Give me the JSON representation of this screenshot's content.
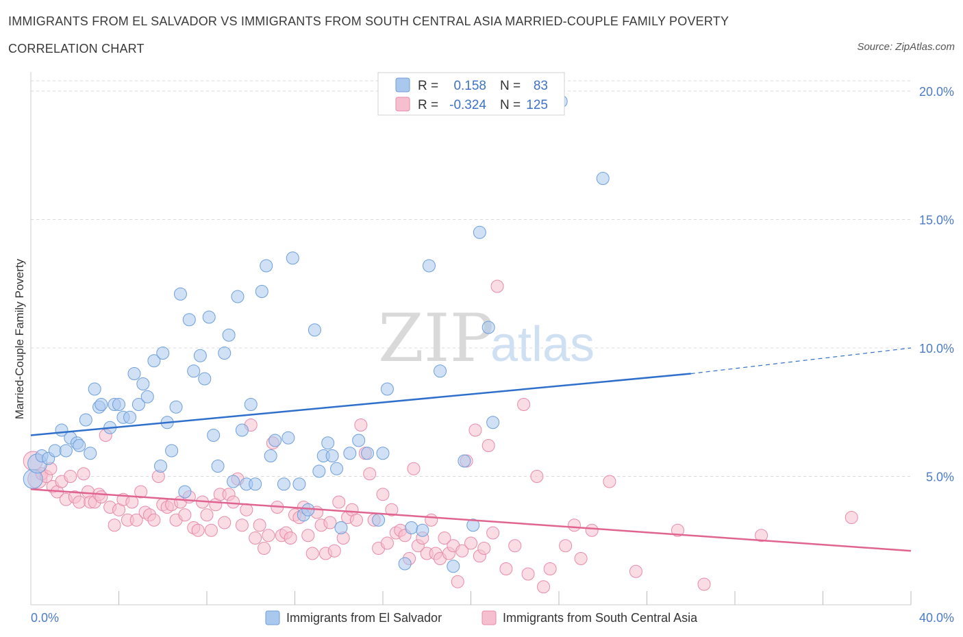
{
  "title_line1": "IMMIGRANTS FROM EL SALVADOR VS IMMIGRANTS FROM SOUTH CENTRAL ASIA MARRIED-COUPLE FAMILY POVERTY",
  "title_line2": "CORRELATION CHART",
  "source": "Source: ZipAtlas.com",
  "watermark": {
    "zip": "ZIP",
    "atlas": "atlas"
  },
  "legend": {
    "r_label": "R =",
    "n_label": "N =",
    "series1": {
      "r": "0.158",
      "n": "83"
    },
    "series2": {
      "r": "-0.324",
      "n": "125"
    }
  },
  "bottom_legend": {
    "series1": "Immigrants from El Salvador",
    "series2": "Immigrants from South Central Asia"
  },
  "colors": {
    "blue_fill": "#aac8ee",
    "blue_stroke": "#6d9edb",
    "blue_line": "#2f6fcc",
    "pink_fill": "#f6bfd0",
    "pink_stroke": "#e88aa9",
    "pink_line": "#e0648f",
    "tick_text": "#4a7bc8",
    "grid": "#d8d8d8"
  },
  "chart_data": {
    "type": "scatter",
    "title": "IMMIGRANTS FROM EL SALVADOR VS IMMIGRANTS FROM SOUTH CENTRAL ASIA MARRIED-COUPLE FAMILY POVERTY CORRELATION CHART",
    "xlabel": "",
    "ylabel": "Married-Couple Family Poverty",
    "xlim": [
      0,
      40
    ],
    "ylim": [
      0,
      20
    ],
    "x_tick_labels": [
      "0.0%",
      "40.0%"
    ],
    "y_ticks": [
      5,
      10,
      15,
      20
    ],
    "y_tick_labels": [
      "5.0%",
      "10.0%",
      "15.0%",
      "20.0%"
    ],
    "grid": true,
    "legend_position": "top-center",
    "series": [
      {
        "name": "Immigrants from El Salvador",
        "color": "blue",
        "r": 0.158,
        "n": 83,
        "trend": {
          "x0": 0,
          "y0": 6.6,
          "x1": 30,
          "y1": 9.0,
          "dashed_to_x": 40,
          "dashed_to_y": 10.0
        },
        "points": [
          [
            0.1,
            4.9
          ],
          [
            0.3,
            5.5
          ],
          [
            0.5,
            5.8
          ],
          [
            0.8,
            5.7
          ],
          [
            1.1,
            6.0
          ],
          [
            1.4,
            6.8
          ],
          [
            1.6,
            6.0
          ],
          [
            1.8,
            6.5
          ],
          [
            2.1,
            6.3
          ],
          [
            2.2,
            6.2
          ],
          [
            2.5,
            7.2
          ],
          [
            2.7,
            5.9
          ],
          [
            2.9,
            8.4
          ],
          [
            3.1,
            7.7
          ],
          [
            3.2,
            7.8
          ],
          [
            3.6,
            6.9
          ],
          [
            3.8,
            7.8
          ],
          [
            4.0,
            7.8
          ],
          [
            4.2,
            7.3
          ],
          [
            4.5,
            7.3
          ],
          [
            4.7,
            9.0
          ],
          [
            4.9,
            7.8
          ],
          [
            5.1,
            8.6
          ],
          [
            5.3,
            8.1
          ],
          [
            5.6,
            9.5
          ],
          [
            5.9,
            5.4
          ],
          [
            6.0,
            9.8
          ],
          [
            6.2,
            7.1
          ],
          [
            6.4,
            6.0
          ],
          [
            6.6,
            7.7
          ],
          [
            6.8,
            12.1
          ],
          [
            7.0,
            4.4
          ],
          [
            7.2,
            11.1
          ],
          [
            7.4,
            9.1
          ],
          [
            7.7,
            9.7
          ],
          [
            7.9,
            8.8
          ],
          [
            8.1,
            11.2
          ],
          [
            8.3,
            6.6
          ],
          [
            8.5,
            5.4
          ],
          [
            8.8,
            9.8
          ],
          [
            9.0,
            10.5
          ],
          [
            9.2,
            4.8
          ],
          [
            9.4,
            12.0
          ],
          [
            9.6,
            6.8
          ],
          [
            9.8,
            4.7
          ],
          [
            10.0,
            7.8
          ],
          [
            10.2,
            4.7
          ],
          [
            10.5,
            12.2
          ],
          [
            10.7,
            13.2
          ],
          [
            10.9,
            5.8
          ],
          [
            11.1,
            6.4
          ],
          [
            11.5,
            4.7
          ],
          [
            11.7,
            6.5
          ],
          [
            11.9,
            13.5
          ],
          [
            12.2,
            4.7
          ],
          [
            12.4,
            3.5
          ],
          [
            12.6,
            3.7
          ],
          [
            12.9,
            10.7
          ],
          [
            13.1,
            5.2
          ],
          [
            13.3,
            5.8
          ],
          [
            13.5,
            6.3
          ],
          [
            13.7,
            5.8
          ],
          [
            13.9,
            5.3
          ],
          [
            14.1,
            3.0
          ],
          [
            14.5,
            5.9
          ],
          [
            14.9,
            6.4
          ],
          [
            15.3,
            5.9
          ],
          [
            15.8,
            3.3
          ],
          [
            16.0,
            5.9
          ],
          [
            16.2,
            8.4
          ],
          [
            17.0,
            1.6
          ],
          [
            17.3,
            3.0
          ],
          [
            17.8,
            2.9
          ],
          [
            18.1,
            13.2
          ],
          [
            18.6,
            9.1
          ],
          [
            19.2,
            1.5
          ],
          [
            19.7,
            5.6
          ],
          [
            20.1,
            3.1
          ],
          [
            20.4,
            14.5
          ],
          [
            20.8,
            10.8
          ],
          [
            21.0,
            7.1
          ],
          [
            24.1,
            19.6
          ],
          [
            26.0,
            16.6
          ]
        ]
      },
      {
        "name": "Immigrants from South Central Asia",
        "color": "pink",
        "r": -0.324,
        "n": 125,
        "trend": {
          "x0": 0,
          "y0": 4.5,
          "x1": 40,
          "y1": 2.1
        },
        "points": [
          [
            0.1,
            5.6
          ],
          [
            0.3,
            4.9
          ],
          [
            0.5,
            5.1
          ],
          [
            0.7,
            5.0
          ],
          [
            0.9,
            5.3
          ],
          [
            1.0,
            4.6
          ],
          [
            1.2,
            4.4
          ],
          [
            1.4,
            4.8
          ],
          [
            1.6,
            4.1
          ],
          [
            1.8,
            5.0
          ],
          [
            2.0,
            4.2
          ],
          [
            2.2,
            4.0
          ],
          [
            2.4,
            5.1
          ],
          [
            2.6,
            4.4
          ],
          [
            2.7,
            4.0
          ],
          [
            2.9,
            4.0
          ],
          [
            3.1,
            4.3
          ],
          [
            3.2,
            4.2
          ],
          [
            3.4,
            6.6
          ],
          [
            3.6,
            3.8
          ],
          [
            3.8,
            3.1
          ],
          [
            4.0,
            3.7
          ],
          [
            4.2,
            4.1
          ],
          [
            4.4,
            3.3
          ],
          [
            4.6,
            4.0
          ],
          [
            4.8,
            3.3
          ],
          [
            5.0,
            4.4
          ],
          [
            5.2,
            3.6
          ],
          [
            5.4,
            3.5
          ],
          [
            5.6,
            3.3
          ],
          [
            5.8,
            5.0
          ],
          [
            6.0,
            3.9
          ],
          [
            6.2,
            3.8
          ],
          [
            6.4,
            3.9
          ],
          [
            6.6,
            3.3
          ],
          [
            6.8,
            4.0
          ],
          [
            7.0,
            3.5
          ],
          [
            7.2,
            4.2
          ],
          [
            7.4,
            3.0
          ],
          [
            7.6,
            2.9
          ],
          [
            7.8,
            4.0
          ],
          [
            8.0,
            3.5
          ],
          [
            8.2,
            2.9
          ],
          [
            8.4,
            3.9
          ],
          [
            8.6,
            4.3
          ],
          [
            8.8,
            3.2
          ],
          [
            9.0,
            4.3
          ],
          [
            9.2,
            4.0
          ],
          [
            9.4,
            4.9
          ],
          [
            9.6,
            3.1
          ],
          [
            9.8,
            3.7
          ],
          [
            10.0,
            7.0
          ],
          [
            10.2,
            2.6
          ],
          [
            10.4,
            3.1
          ],
          [
            10.6,
            2.2
          ],
          [
            10.8,
            2.7
          ],
          [
            11.0,
            6.3
          ],
          [
            11.2,
            3.8
          ],
          [
            11.4,
            2.7
          ],
          [
            11.6,
            2.8
          ],
          [
            11.8,
            2.6
          ],
          [
            12.0,
            3.5
          ],
          [
            12.2,
            3.4
          ],
          [
            12.4,
            3.8
          ],
          [
            12.6,
            2.7
          ],
          [
            12.8,
            2.0
          ],
          [
            13.0,
            3.6
          ],
          [
            13.2,
            3.1
          ],
          [
            13.4,
            2.0
          ],
          [
            13.6,
            3.2
          ],
          [
            13.8,
            2.1
          ],
          [
            14.0,
            4.0
          ],
          [
            14.2,
            2.6
          ],
          [
            14.4,
            3.4
          ],
          [
            14.6,
            3.7
          ],
          [
            14.8,
            3.3
          ],
          [
            15.0,
            7.0
          ],
          [
            15.2,
            5.9
          ],
          [
            15.4,
            5.1
          ],
          [
            15.6,
            3.3
          ],
          [
            15.8,
            2.2
          ],
          [
            16.0,
            4.3
          ],
          [
            16.2,
            2.4
          ],
          [
            16.4,
            3.7
          ],
          [
            16.6,
            2.8
          ],
          [
            16.8,
            2.9
          ],
          [
            17.0,
            2.7
          ],
          [
            17.2,
            1.8
          ],
          [
            17.4,
            5.3
          ],
          [
            17.6,
            2.3
          ],
          [
            17.8,
            2.6
          ],
          [
            18.0,
            2.0
          ],
          [
            18.2,
            3.3
          ],
          [
            18.4,
            2.0
          ],
          [
            18.6,
            1.8
          ],
          [
            18.8,
            2.6
          ],
          [
            19.0,
            2.0
          ],
          [
            19.2,
            2.3
          ],
          [
            19.4,
            0.9
          ],
          [
            19.6,
            2.1
          ],
          [
            19.8,
            5.6
          ],
          [
            20.0,
            2.4
          ],
          [
            20.2,
            6.8
          ],
          [
            20.4,
            1.9
          ],
          [
            20.6,
            2.2
          ],
          [
            20.8,
            6.2
          ],
          [
            21.0,
            2.8
          ],
          [
            21.2,
            12.4
          ],
          [
            21.6,
            1.4
          ],
          [
            22.0,
            2.3
          ],
          [
            22.4,
            7.8
          ],
          [
            22.6,
            1.2
          ],
          [
            23.0,
            5.0
          ],
          [
            23.3,
            0.7
          ],
          [
            23.6,
            1.4
          ],
          [
            24.3,
            2.3
          ],
          [
            24.7,
            3.1
          ],
          [
            25.0,
            1.8
          ],
          [
            25.5,
            2.9
          ],
          [
            26.3,
            4.8
          ],
          [
            27.5,
            1.3
          ],
          [
            29.4,
            2.9
          ],
          [
            30.6,
            0.8
          ],
          [
            33.2,
            2.7
          ],
          [
            37.3,
            3.4
          ]
        ]
      }
    ]
  }
}
